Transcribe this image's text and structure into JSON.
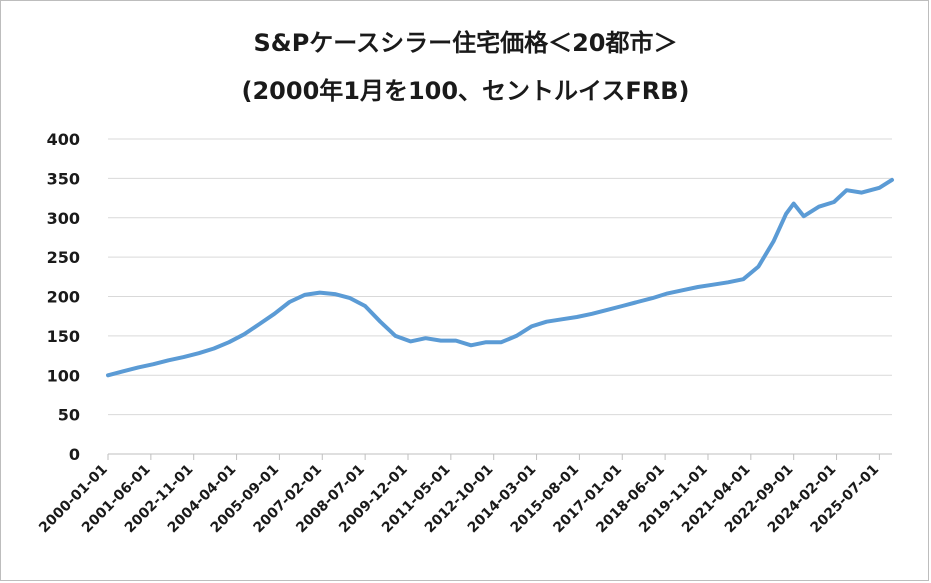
{
  "chart_data": {
    "type": "line",
    "title": "S&Pケースシラー住宅価格＜20都市＞",
    "subtitle": "(2000年1月を100、セントルイスFRB)",
    "xlabel": "",
    "ylabel": "",
    "ylim": [
      0,
      400
    ],
    "yticks": [
      "0",
      "50",
      "100",
      "150",
      "200",
      "250",
      "300",
      "350",
      "400"
    ],
    "xticks": [
      "2000-01-01",
      "2001-06-01",
      "2002-11-01",
      "2004-04-01",
      "2005-09-01",
      "2007-02-01",
      "2008-07-01",
      "2009-12-01",
      "2011-05-01",
      "2012-10-01",
      "2014-03-01",
      "2015-08-01",
      "2017-01-01",
      "2018-06-01",
      "2019-11-01",
      "2021-04-01",
      "2022-09-01",
      "2024-02-01",
      "2025-07-01"
    ],
    "grid": true,
    "legend": "none",
    "line_color": "#5b9bd5",
    "series": [
      {
        "x": [
          "2000-01-01",
          "2000-07-01",
          "2001-01-01",
          "2001-07-01",
          "2002-01-01",
          "2002-07-01",
          "2003-01-01",
          "2003-07-01",
          "2004-01-01",
          "2004-07-01",
          "2005-01-01",
          "2005-07-01",
          "2006-01-01",
          "2006-07-01",
          "2007-01-01",
          "2007-07-01",
          "2008-01-01",
          "2008-07-01",
          "2009-01-01",
          "2009-05-01",
          "2009-07-01",
          "2010-01-01",
          "2010-07-01",
          "2011-01-01",
          "2011-07-01",
          "2012-01-01",
          "2012-07-01",
          "2013-01-01",
          "2013-07-01",
          "2014-01-01",
          "2014-07-01",
          "2015-01-01",
          "2015-07-01",
          "2016-01-01",
          "2016-07-01",
          "2017-01-01",
          "2017-07-01",
          "2018-01-01",
          "2018-07-01",
          "2019-01-01",
          "2019-07-01",
          "2020-01-01",
          "2020-07-01",
          "2021-01-01",
          "2021-07-01",
          "2022-01-01",
          "2022-06-01",
          "2022-09-01",
          "2023-01-01",
          "2023-07-01",
          "2024-01-01",
          "2024-06-01",
          "2024-12-01",
          "2025-07-01",
          "2025-12-01"
        ],
        "values": [
          100,
          105,
          110,
          114,
          119,
          123,
          128,
          134,
          142,
          152,
          165,
          178,
          193,
          202,
          205,
          203,
          198,
          188,
          168,
          156,
          150,
          143,
          147,
          144,
          144,
          138,
          142,
          142,
          150,
          162,
          168,
          171,
          174,
          178,
          183,
          188,
          193,
          198,
          204,
          208,
          212,
          215,
          218,
          222,
          238,
          270,
          305,
          318,
          302,
          314,
          320,
          335,
          332,
          338,
          348
        ]
      }
    ]
  }
}
